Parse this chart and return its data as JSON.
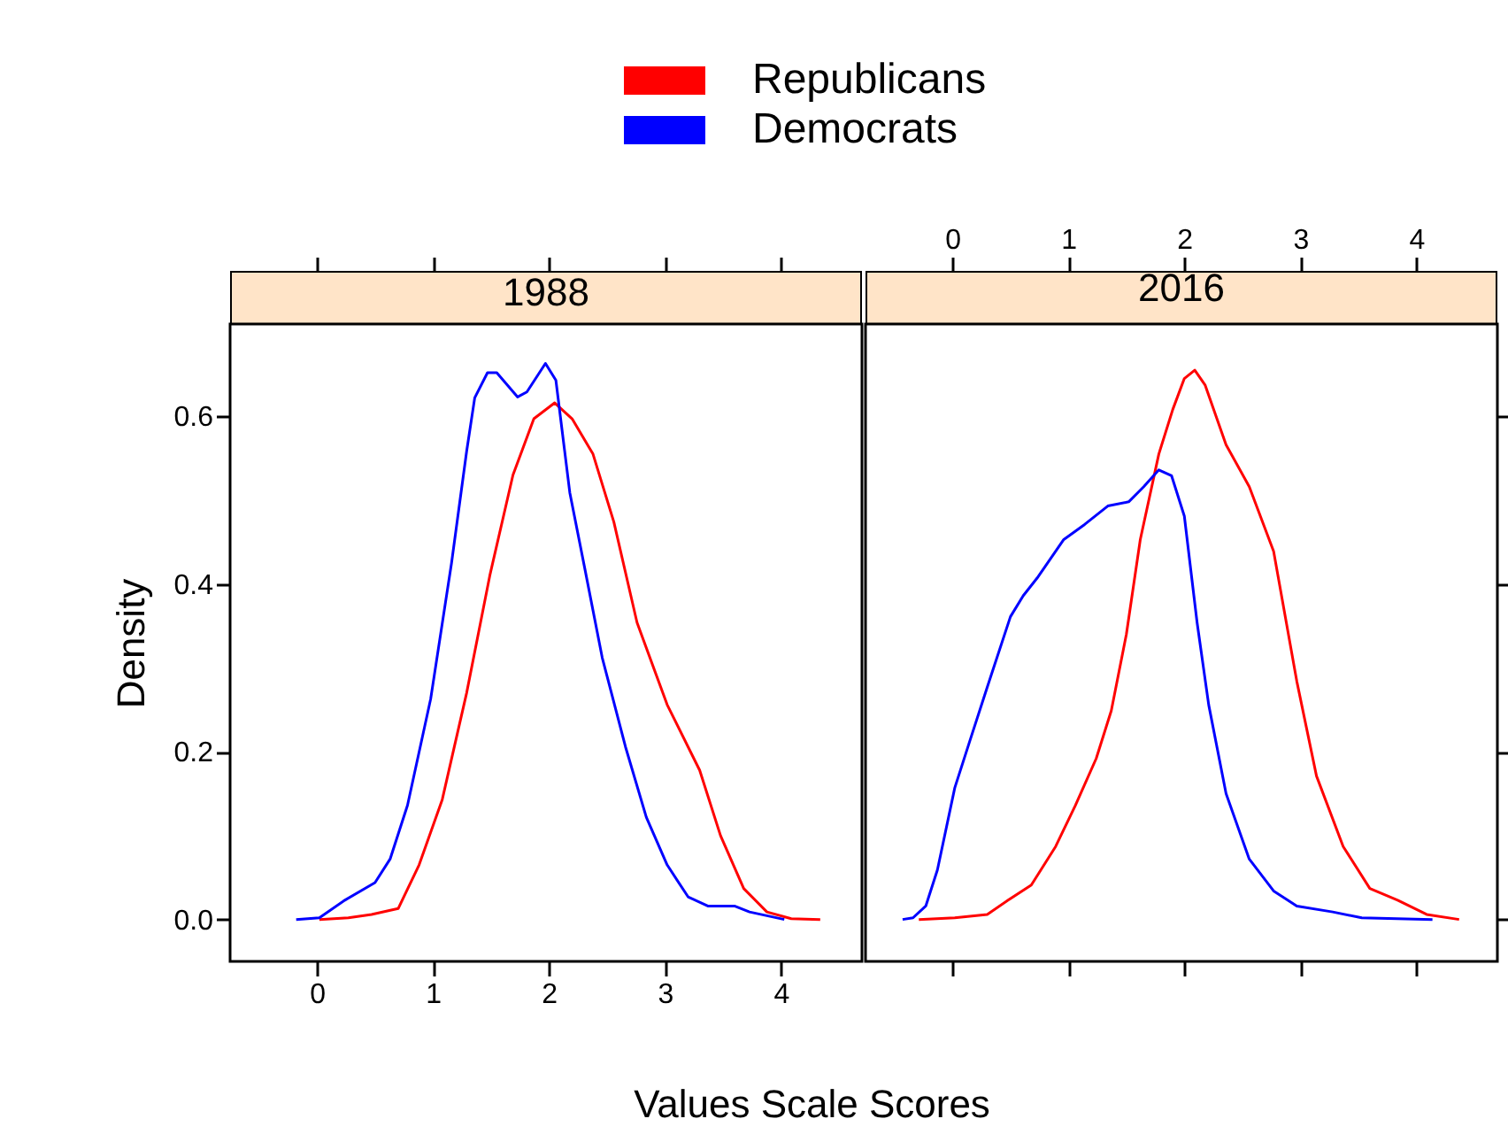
{
  "chart_data": [
    {
      "type": "line",
      "title": "1988",
      "xlabel": "Values Scale Scores",
      "ylabel": "Density",
      "legend": "top",
      "xlim": [
        -0.75,
        4.7
      ],
      "xticks": [
        0,
        1,
        2,
        3,
        4
      ],
      "ylim": [
        -0.05,
        0.71
      ],
      "yticks": [
        {
          "value": 0,
          "label": "0.0"
        },
        0.2,
        0.4,
        0.6
      ],
      "series": [
        {
          "name": "Republicans",
          "color": "#ff0000",
          "x": [
            0.02,
            0.27,
            0.47,
            0.7,
            0.88,
            1.08,
            1.29,
            1.49,
            1.69,
            1.87,
            2.05,
            2.2,
            2.38,
            2.56,
            2.76,
            3.02,
            3.3,
            3.48,
            3.68,
            3.88,
            4.09,
            4.34
          ],
          "values": [
            0,
            0.002,
            0.006,
            0.013,
            0.065,
            0.143,
            0.27,
            0.41,
            0.53,
            0.597,
            0.616,
            0.597,
            0.555,
            0.474,
            0.354,
            0.256,
            0.178,
            0.1,
            0.037,
            0.009,
            0.001,
            0
          ]
        },
        {
          "name": "Democrats",
          "color": "#0000ff",
          "x": [
            -0.18,
            0.02,
            0.24,
            0.5,
            0.63,
            0.78,
            0.98,
            1.16,
            1.29,
            1.36,
            1.47,
            1.55,
            1.73,
            1.81,
            1.97,
            2.06,
            2.18,
            2.31,
            2.46,
            2.66,
            2.84,
            3.02,
            3.2,
            3.37,
            3.6,
            3.73,
            4.03
          ],
          "values": [
            0,
            0.002,
            0.023,
            0.044,
            0.072,
            0.136,
            0.263,
            0.425,
            0.558,
            0.622,
            0.652,
            0.652,
            0.623,
            0.629,
            0.663,
            0.643,
            0.509,
            0.418,
            0.312,
            0.206,
            0.122,
            0.065,
            0.027,
            0.016,
            0.016,
            0.009,
            0
          ]
        }
      ]
    },
    {
      "type": "line",
      "title": "2016",
      "legend": "top",
      "tick_labels": "x",
      "xlim": [
        -0.75,
        4.7
      ],
      "xticks": [
        0,
        1,
        2,
        3,
        4
      ],
      "ylim": [
        -0.05,
        0.71
      ],
      "yticks": [
        0,
        0.2,
        0.4,
        0.6
      ],
      "series": [
        {
          "name": "Republicans",
          "color": "#ff0000",
          "x": [
            -0.29,
            0.02,
            0.3,
            0.48,
            0.68,
            0.89,
            1.06,
            1.24,
            1.37,
            1.5,
            1.62,
            1.78,
            1.9,
            2.0,
            2.09,
            2.18,
            2.36,
            2.56,
            2.77,
            2.97,
            3.14,
            3.37,
            3.6,
            3.84,
            4.09,
            4.37
          ],
          "values": [
            0,
            0.002,
            0.006,
            0.023,
            0.041,
            0.087,
            0.136,
            0.192,
            0.249,
            0.34,
            0.453,
            0.555,
            0.608,
            0.645,
            0.655,
            0.637,
            0.566,
            0.516,
            0.439,
            0.284,
            0.171,
            0.087,
            0.037,
            0.023,
            0.006,
            0
          ]
        },
        {
          "name": "Democrats",
          "color": "#0000ff",
          "x": [
            -0.43,
            -0.34,
            -0.23,
            -0.13,
            0.02,
            0.15,
            0.3,
            0.5,
            0.61,
            0.73,
            0.96,
            1.14,
            1.34,
            1.52,
            1.65,
            1.78,
            1.89,
            2.0,
            2.11,
            2.21,
            2.36,
            2.56,
            2.77,
            2.97,
            3.28,
            3.53,
            4.14
          ],
          "values": [
            0,
            0.002,
            0.016,
            0.059,
            0.157,
            0.213,
            0.277,
            0.361,
            0.386,
            0.407,
            0.453,
            0.471,
            0.493,
            0.498,
            0.516,
            0.536,
            0.529,
            0.481,
            0.354,
            0.256,
            0.15,
            0.072,
            0.034,
            0.016,
            0.009,
            0.002,
            0
          ]
        }
      ]
    }
  ]
}
